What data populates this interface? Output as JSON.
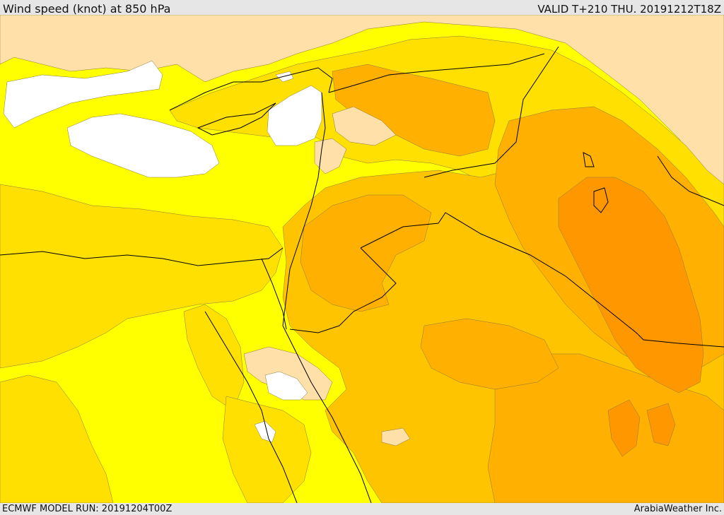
{
  "header": {
    "title": "Wind speed (knot) at 850 hPa",
    "valid": "VALID T+210 THU. 20191212T18Z"
  },
  "footer": {
    "model_run": "ECMWF MODEL RUN: 20191204T00Z",
    "credit": "ArabiaWeather Inc."
  },
  "map": {
    "colors": {
      "calm": "#ffffff",
      "light": "#ffe0a8",
      "yellow": "#ffff00",
      "gold": "#ffe000",
      "amber": "#ffc400",
      "orange": "#ffb000",
      "deep_orange": "#ff9800",
      "coast": "#000000"
    }
  }
}
